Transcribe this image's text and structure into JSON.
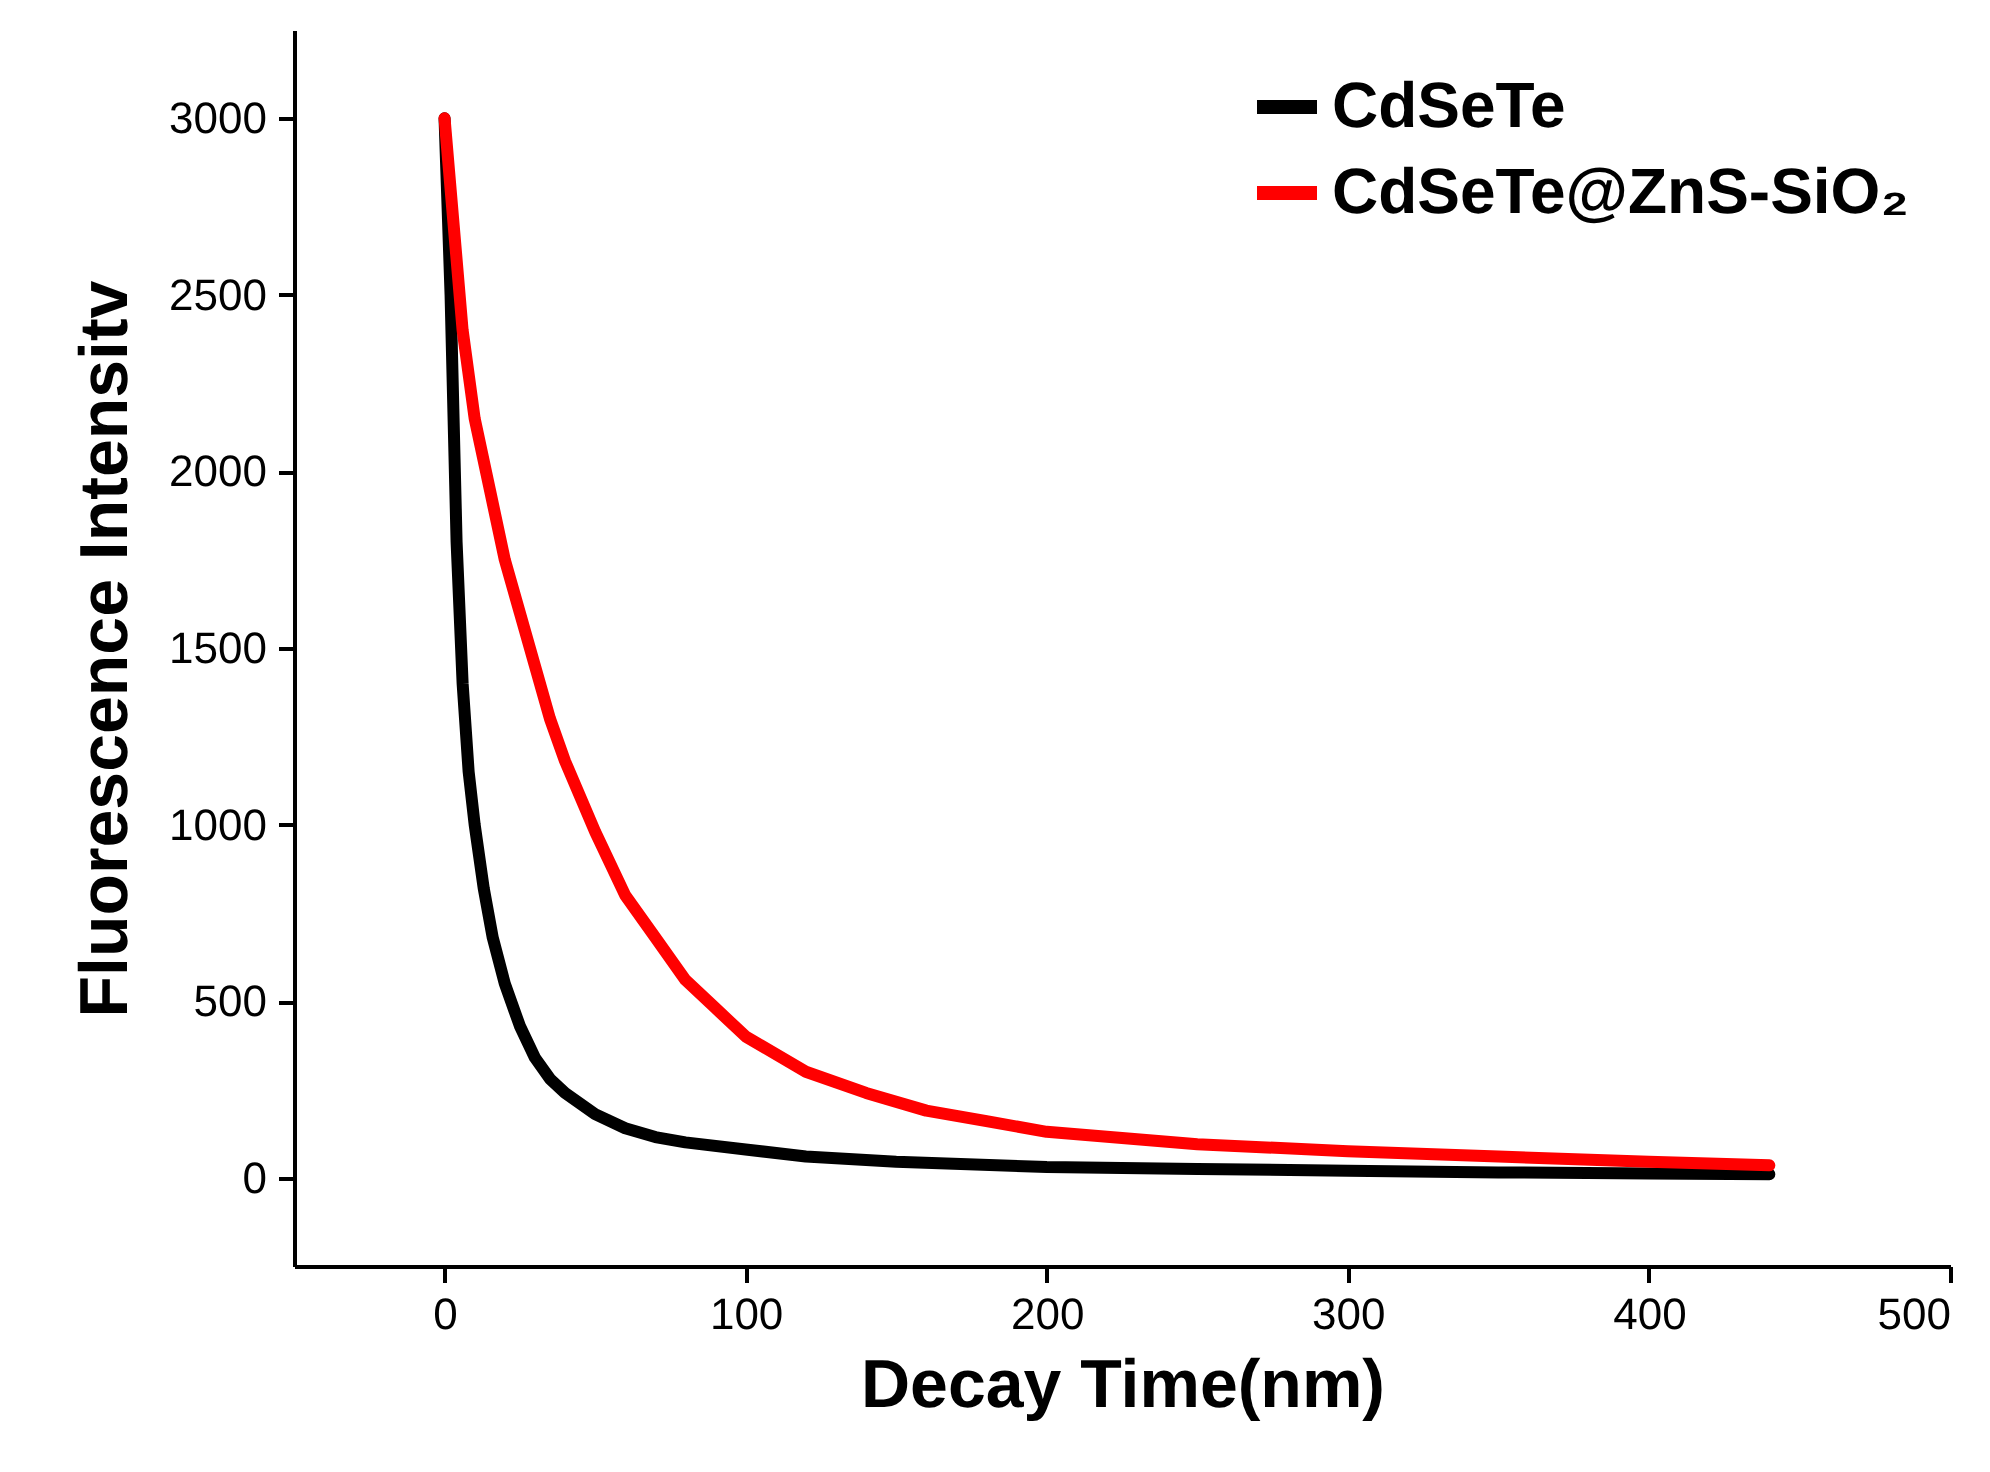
{
  "chart_data": {
    "type": "line",
    "xlabel": "Decay Time(nm)",
    "ylabel": "Fluorescence Intensitv",
    "xlim": [
      -50,
      500
    ],
    "ylim": [
      -250,
      3250
    ],
    "xticks": [
      0,
      100,
      200,
      300,
      400,
      500
    ],
    "yticks": [
      0,
      500,
      1000,
      1500,
      2000,
      2500,
      3000
    ],
    "grid": false,
    "legend": "top right",
    "marker": "none",
    "line_style": "solid",
    "series": [
      {
        "name": "CdSeTe",
        "color": "#000000",
        "x": [
          0,
          2,
          4,
          6,
          8,
          10,
          13,
          16,
          20,
          25,
          30,
          35,
          40,
          50,
          60,
          70,
          80,
          100,
          120,
          150,
          200,
          250,
          300,
          350,
          400,
          440
        ],
        "values": [
          3000,
          2500,
          1800,
          1400,
          1150,
          1000,
          820,
          680,
          550,
          430,
          340,
          280,
          240,
          180,
          140,
          115,
          100,
          80,
          60,
          45,
          30,
          25,
          20,
          15,
          12,
          10
        ]
      },
      {
        "name": "CdSeTe@ZnS-SiO₂",
        "color": "#ff0000",
        "x": [
          0,
          3,
          6,
          10,
          15,
          20,
          25,
          30,
          35,
          40,
          50,
          60,
          70,
          80,
          90,
          100,
          120,
          140,
          160,
          180,
          200,
          250,
          300,
          350,
          400,
          440
        ],
        "values": [
          3000,
          2700,
          2400,
          2150,
          1950,
          1750,
          1600,
          1450,
          1300,
          1180,
          980,
          800,
          680,
          560,
          480,
          400,
          300,
          240,
          190,
          160,
          130,
          95,
          75,
          60,
          45,
          35
        ]
      }
    ]
  }
}
